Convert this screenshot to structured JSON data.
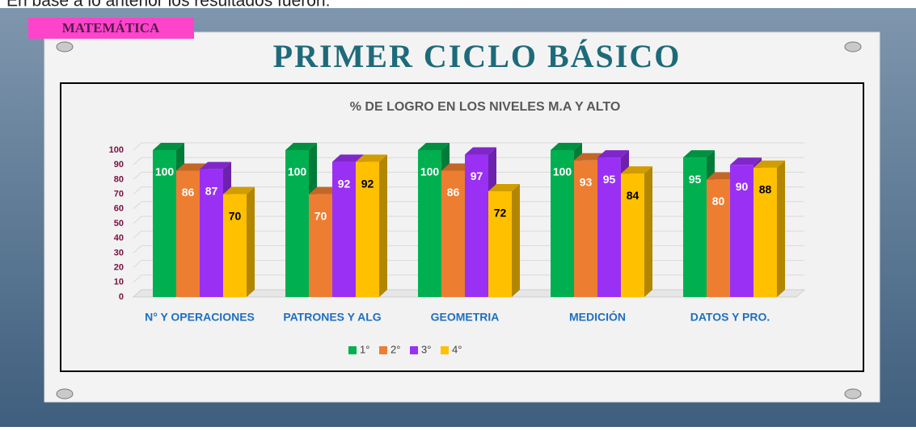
{
  "caption": "En base a lo anterior los resultados fueron:",
  "tag": "MATEMÁTICA",
  "slide_title": "PRIMER CICLO BÁSICO",
  "chart_data": {
    "type": "bar",
    "title": "% DE LOGRO EN LOS NIVELES M.A Y ALTO",
    "categories": [
      "N° Y OPERACIONES",
      "PATRONES Y ALG",
      "GEOMETRIA",
      "MEDICIÓN",
      "DATOS Y PRO."
    ],
    "series": [
      {
        "name": "1°",
        "color": "#00b050",
        "values": [
          100,
          100,
          100,
          100,
          95
        ]
      },
      {
        "name": "2°",
        "color": "#ed7d31",
        "values": [
          86,
          70,
          86,
          93,
          80
        ]
      },
      {
        "name": "3°",
        "color": "#9b30f5",
        "values": [
          87,
          92,
          97,
          95,
          90
        ]
      },
      {
        "name": "4°",
        "color": "#ffc000",
        "values": [
          70,
          92,
          72,
          84,
          88
        ]
      }
    ],
    "ylim": [
      0,
      100
    ],
    "yticks": [
      0,
      10,
      20,
      30,
      40,
      50,
      60,
      70,
      80,
      90,
      100
    ],
    "grid": true,
    "legend": "bottom"
  }
}
